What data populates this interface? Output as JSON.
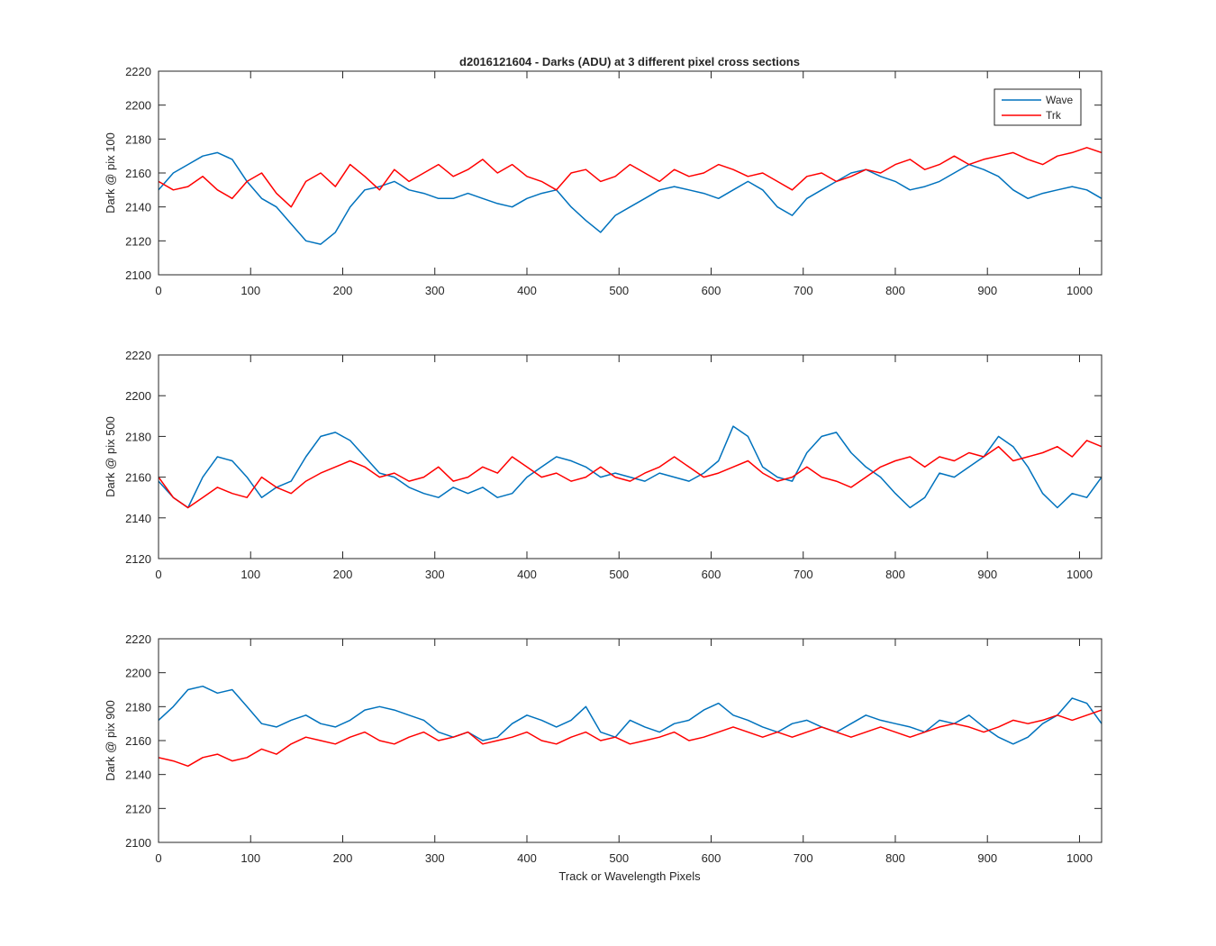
{
  "figure_title": "d2016121604 - Darks (ADU) at 3 different pixel cross sections",
  "xlabel": "Track or Wavelength Pixels",
  "colors": {
    "wave": "#0072bd",
    "trk": "#ff0000",
    "axis": "#262626"
  },
  "legend": {
    "entries": [
      "Wave",
      "Trk"
    ],
    "location": "top-right of first panel"
  },
  "chart_data": [
    {
      "type": "line",
      "ylabel": "Dark @ pix 100",
      "xlim": [
        0,
        1024
      ],
      "ylim": [
        2100,
        2220
      ],
      "xticks": [
        "0",
        "100",
        "200",
        "300",
        "400",
        "500",
        "600",
        "700",
        "800",
        "900",
        "1000"
      ],
      "yticks": [
        "2100",
        "2120",
        "2140",
        "2160",
        "2180",
        "2200",
        "2220"
      ],
      "grid": false,
      "x_step": 16,
      "series": [
        {
          "name": "Wave",
          "color": "#0072bd",
          "values": [
            2150,
            2160,
            2165,
            2170,
            2172,
            2168,
            2155,
            2145,
            2140,
            2130,
            2120,
            2118,
            2125,
            2140,
            2150,
            2152,
            2155,
            2150,
            2148,
            2145,
            2145,
            2148,
            2145,
            2142,
            2140,
            2145,
            2148,
            2150,
            2140,
            2132,
            2125,
            2135,
            2140,
            2145,
            2150,
            2152,
            2150,
            2148,
            2145,
            2150,
            2155,
            2150,
            2140,
            2135,
            2145,
            2150,
            2155,
            2160,
            2162,
            2158,
            2155,
            2150,
            2152,
            2155,
            2160,
            2165,
            2162,
            2158,
            2150,
            2145,
            2148,
            2150,
            2152,
            2150,
            2145
          ]
        },
        {
          "name": "Trk",
          "color": "#ff0000",
          "values": [
            2155,
            2150,
            2152,
            2158,
            2150,
            2145,
            2155,
            2160,
            2148,
            2140,
            2155,
            2160,
            2152,
            2165,
            2158,
            2150,
            2162,
            2155,
            2160,
            2165,
            2158,
            2162,
            2168,
            2160,
            2165,
            2158,
            2155,
            2150,
            2160,
            2162,
            2155,
            2158,
            2165,
            2160,
            2155,
            2162,
            2158,
            2160,
            2165,
            2162,
            2158,
            2160,
            2155,
            2150,
            2158,
            2160,
            2155,
            2158,
            2162,
            2160,
            2165,
            2168,
            2162,
            2165,
            2170,
            2165,
            2168,
            2170,
            2172,
            2168,
            2165,
            2170,
            2172,
            2175,
            2172
          ]
        }
      ]
    },
    {
      "type": "line",
      "ylabel": "Dark @ pix 500",
      "xlim": [
        0,
        1024
      ],
      "ylim": [
        2120,
        2220
      ],
      "xticks": [
        "0",
        "100",
        "200",
        "300",
        "400",
        "500",
        "600",
        "700",
        "800",
        "900",
        "1000"
      ],
      "yticks": [
        "2120",
        "2140",
        "2160",
        "2180",
        "2200",
        "2220"
      ],
      "grid": false,
      "x_step": 16,
      "series": [
        {
          "name": "Wave",
          "color": "#0072bd",
          "values": [
            2158,
            2150,
            2145,
            2160,
            2170,
            2168,
            2160,
            2150,
            2155,
            2158,
            2170,
            2180,
            2182,
            2178,
            2170,
            2162,
            2160,
            2155,
            2152,
            2150,
            2155,
            2152,
            2155,
            2150,
            2152,
            2160,
            2165,
            2170,
            2168,
            2165,
            2160,
            2162,
            2160,
            2158,
            2162,
            2160,
            2158,
            2162,
            2168,
            2185,
            2180,
            2165,
            2160,
            2158,
            2172,
            2180,
            2182,
            2172,
            2165,
            2160,
            2152,
            2145,
            2150,
            2162,
            2160,
            2165,
            2170,
            2180,
            2175,
            2165,
            2152,
            2145,
            2152,
            2150,
            2160
          ]
        },
        {
          "name": "Trk",
          "color": "#ff0000",
          "values": [
            2160,
            2150,
            2145,
            2150,
            2155,
            2152,
            2150,
            2160,
            2155,
            2152,
            2158,
            2162,
            2165,
            2168,
            2165,
            2160,
            2162,
            2158,
            2160,
            2165,
            2158,
            2160,
            2165,
            2162,
            2170,
            2165,
            2160,
            2162,
            2158,
            2160,
            2165,
            2160,
            2158,
            2162,
            2165,
            2170,
            2165,
            2160,
            2162,
            2165,
            2168,
            2162,
            2158,
            2160,
            2165,
            2160,
            2158,
            2155,
            2160,
            2165,
            2168,
            2170,
            2165,
            2170,
            2168,
            2172,
            2170,
            2175,
            2168,
            2170,
            2172,
            2175,
            2170,
            2178,
            2175
          ]
        }
      ]
    },
    {
      "type": "line",
      "ylabel": "Dark @ pix 900",
      "xlim": [
        0,
        1024
      ],
      "ylim": [
        2100,
        2220
      ],
      "xticks": [
        "0",
        "100",
        "200",
        "300",
        "400",
        "500",
        "600",
        "700",
        "800",
        "900",
        "1000"
      ],
      "yticks": [
        "2100",
        "2120",
        "2140",
        "2160",
        "2180",
        "2200",
        "2220"
      ],
      "grid": false,
      "x_step": 16,
      "series": [
        {
          "name": "Wave",
          "color": "#0072bd",
          "values": [
            2172,
            2180,
            2190,
            2192,
            2188,
            2190,
            2180,
            2170,
            2168,
            2172,
            2175,
            2170,
            2168,
            2172,
            2178,
            2180,
            2178,
            2175,
            2172,
            2165,
            2162,
            2165,
            2160,
            2162,
            2170,
            2175,
            2172,
            2168,
            2172,
            2180,
            2165,
            2162,
            2172,
            2168,
            2165,
            2170,
            2172,
            2178,
            2182,
            2175,
            2172,
            2168,
            2165,
            2170,
            2172,
            2168,
            2165,
            2170,
            2175,
            2172,
            2170,
            2168,
            2165,
            2172,
            2170,
            2175,
            2168,
            2162,
            2158,
            2162,
            2170,
            2175,
            2185,
            2182,
            2170
          ]
        },
        {
          "name": "Trk",
          "color": "#ff0000",
          "values": [
            2150,
            2148,
            2145,
            2150,
            2152,
            2148,
            2150,
            2155,
            2152,
            2158,
            2162,
            2160,
            2158,
            2162,
            2165,
            2160,
            2158,
            2162,
            2165,
            2160,
            2162,
            2165,
            2158,
            2160,
            2162,
            2165,
            2160,
            2158,
            2162,
            2165,
            2160,
            2162,
            2158,
            2160,
            2162,
            2165,
            2160,
            2162,
            2165,
            2168,
            2165,
            2162,
            2165,
            2162,
            2165,
            2168,
            2165,
            2162,
            2165,
            2168,
            2165,
            2162,
            2165,
            2168,
            2170,
            2168,
            2165,
            2168,
            2172,
            2170,
            2172,
            2175,
            2172,
            2175,
            2178
          ]
        }
      ]
    }
  ]
}
